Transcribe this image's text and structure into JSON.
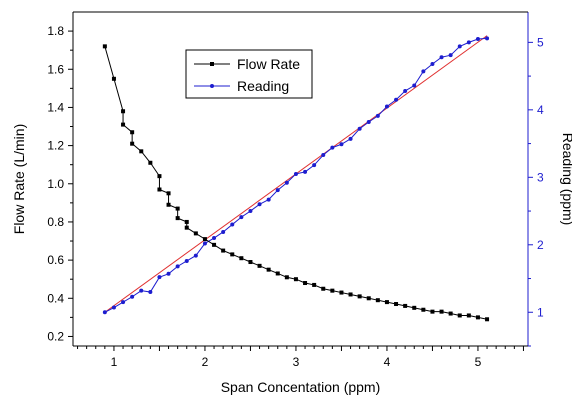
{
  "chart_data": {
    "type": "line",
    "title": "",
    "xlabel": "Span Concentation (ppm)",
    "ylabel_left": "Flow Rate (L/min)",
    "ylabel_right": "Reading (ppm)",
    "xlim": [
      0.55,
      5.55
    ],
    "xticks": [
      "1",
      "2",
      "3",
      "4",
      "5"
    ],
    "xtick_values": [
      1,
      2,
      3,
      4,
      5
    ],
    "ylim_left": [
      0.15,
      1.9
    ],
    "yticks_left": [
      "0.2",
      "0.4",
      "0.6",
      "0.8",
      "1.0",
      "1.2",
      "1.4",
      "1.6",
      "1.8"
    ],
    "ytick_values_left": [
      0.2,
      0.4,
      0.6,
      0.8,
      1.0,
      1.2,
      1.4,
      1.6,
      1.8
    ],
    "ylim_right": [
      0.5,
      5.45
    ],
    "yticks_right": [
      "1",
      "2",
      "3",
      "4",
      "5"
    ],
    "ytick_values_right": [
      1,
      2,
      3,
      4,
      5
    ],
    "grid": false,
    "legend_position": "top-center",
    "series": [
      {
        "name": "Flow Rate",
        "axis": "left",
        "color": "#000000",
        "marker": "square",
        "x": [
          0.9,
          1.0,
          1.1,
          1.1,
          1.2,
          1.2,
          1.3,
          1.4,
          1.5,
          1.5,
          1.6,
          1.6,
          1.7,
          1.7,
          1.8,
          1.8,
          1.9,
          2.0,
          2.1,
          2.2,
          2.3,
          2.4,
          2.5,
          2.6,
          2.7,
          2.8,
          2.9,
          3.0,
          3.1,
          3.2,
          3.3,
          3.4,
          3.5,
          3.6,
          3.7,
          3.8,
          3.9,
          4.0,
          4.1,
          4.2,
          4.3,
          4.4,
          4.5,
          4.6,
          4.7,
          4.8,
          4.9,
          5.0,
          5.1
        ],
        "y": [
          1.72,
          1.55,
          1.38,
          1.31,
          1.27,
          1.21,
          1.17,
          1.11,
          1.04,
          0.97,
          0.95,
          0.89,
          0.87,
          0.82,
          0.8,
          0.77,
          0.74,
          0.71,
          0.68,
          0.65,
          0.63,
          0.61,
          0.59,
          0.57,
          0.55,
          0.53,
          0.51,
          0.5,
          0.48,
          0.47,
          0.45,
          0.44,
          0.43,
          0.42,
          0.41,
          0.4,
          0.39,
          0.38,
          0.37,
          0.36,
          0.35,
          0.34,
          0.33,
          0.33,
          0.32,
          0.31,
          0.31,
          0.3,
          0.29
        ]
      },
      {
        "name": "Reading",
        "axis": "right",
        "color": "#1d1dcf",
        "marker": "circle",
        "x": [
          0.9,
          1.0,
          1.1,
          1.2,
          1.3,
          1.4,
          1.5,
          1.6,
          1.7,
          1.8,
          1.9,
          2.0,
          2.1,
          2.2,
          2.3,
          2.4,
          2.5,
          2.6,
          2.7,
          2.8,
          2.9,
          3.0,
          3.1,
          3.2,
          3.3,
          3.4,
          3.5,
          3.6,
          3.7,
          3.8,
          3.9,
          4.0,
          4.1,
          4.2,
          4.3,
          4.4,
          4.5,
          4.6,
          4.7,
          4.8,
          4.9,
          5.0,
          5.1
        ],
        "y": [
          1.0,
          1.07,
          1.15,
          1.23,
          1.32,
          1.3,
          1.52,
          1.57,
          1.68,
          1.76,
          1.84,
          2.02,
          2.1,
          2.19,
          2.3,
          2.41,
          2.5,
          2.6,
          2.67,
          2.81,
          2.92,
          3.05,
          3.08,
          3.18,
          3.33,
          3.44,
          3.49,
          3.57,
          3.72,
          3.82,
          3.91,
          4.05,
          4.15,
          4.28,
          4.36,
          4.57,
          4.68,
          4.78,
          4.81,
          4.94,
          5.0,
          5.05,
          5.06
        ]
      },
      {
        "name": "",
        "axis": "right",
        "color": "#e03030",
        "marker": "none",
        "x": [
          0.9,
          5.1
        ],
        "y": [
          1.0,
          5.1
        ]
      }
    ]
  }
}
